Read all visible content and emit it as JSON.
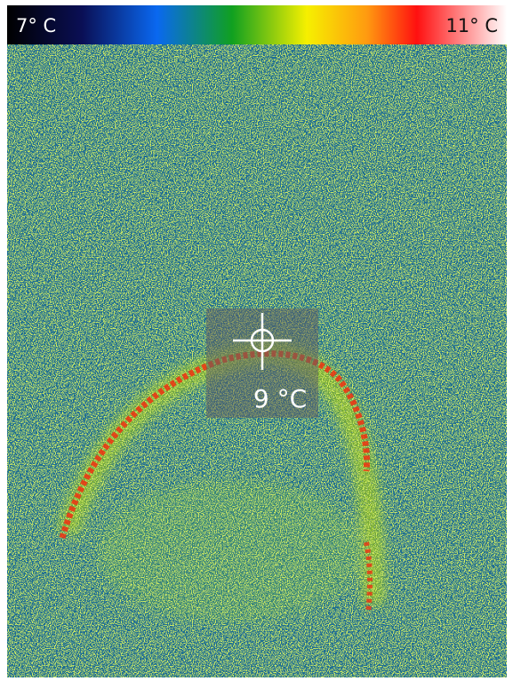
{
  "scale": {
    "min_label": "7° C",
    "max_label": "11° C"
  },
  "spot": {
    "label": "9 °C"
  }
}
